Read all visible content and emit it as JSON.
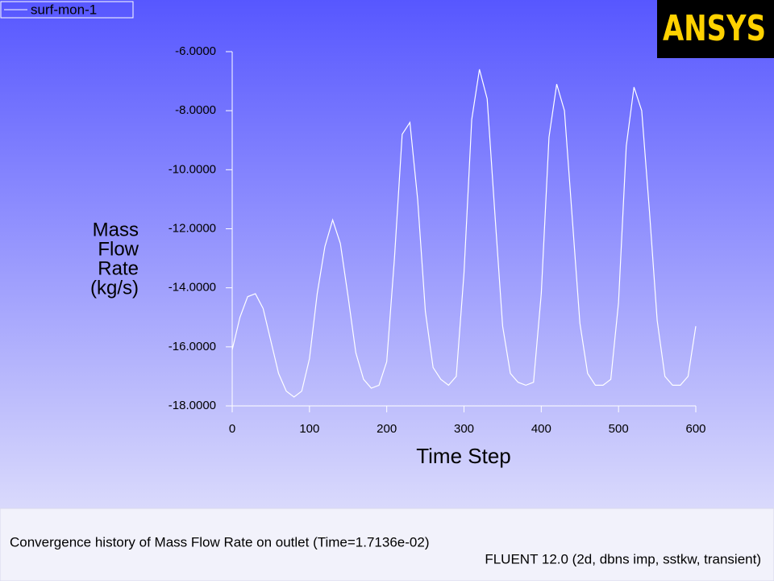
{
  "chart_data": {
    "type": "line",
    "logo": "ANSYS",
    "xlabel": "Time Step",
    "ylabel": [
      "Mass",
      "Flow",
      "Rate",
      "(kg/s)"
    ],
    "caption": "Convergence history of Mass Flow Rate on outlet  (Time=1.7136e-02)",
    "solver_info": "FLUENT 12.0 (2d, dbns imp, sstkw, transient)",
    "x": [
      0,
      10,
      20,
      30,
      40,
      50,
      60,
      70,
      80,
      90,
      100,
      110,
      120,
      130,
      140,
      150,
      160,
      170,
      180,
      190,
      200,
      210,
      220,
      230,
      240,
      250,
      260,
      270,
      280,
      290,
      300,
      310,
      320,
      330,
      340,
      350,
      360,
      370,
      380,
      390,
      400,
      410,
      420,
      430,
      440,
      450,
      460,
      470,
      480,
      490,
      500,
      510,
      520,
      530,
      540,
      550,
      560,
      570,
      580,
      590,
      600
    ],
    "series": [
      {
        "name": "surf-mon-1",
        "color": "#ffffff",
        "values": [
          -16.1,
          -15.0,
          -14.3,
          -14.2,
          -14.7,
          -15.8,
          -16.9,
          -17.5,
          -17.7,
          -17.5,
          -16.4,
          -14.2,
          -12.6,
          -11.7,
          -12.5,
          -14.3,
          -16.2,
          -17.1,
          -17.4,
          -17.3,
          -16.5,
          -13.0,
          -8.8,
          -8.4,
          -11.0,
          -14.8,
          -16.7,
          -17.1,
          -17.3,
          -17.0,
          -13.5,
          -8.3,
          -6.6,
          -7.6,
          -11.5,
          -15.3,
          -16.9,
          -17.2,
          -17.3,
          -17.2,
          -14.2,
          -8.9,
          -7.1,
          -8.0,
          -11.6,
          -15.2,
          -16.9,
          -17.3,
          -17.3,
          -17.1,
          -14.5,
          -9.2,
          -7.2,
          -8.0,
          -11.4,
          -15.1,
          -17.0,
          -17.3,
          -17.3,
          -17.0,
          -15.3
        ]
      }
    ],
    "xlim": [
      0,
      600
    ],
    "xticks": [
      0,
      100,
      200,
      300,
      400,
      500,
      600
    ],
    "ylim": [
      -18,
      -6
    ],
    "yticks": [
      {
        "value": -18,
        "label": "-18.0000"
      },
      {
        "value": -16,
        "label": "-16.0000"
      },
      {
        "value": -14,
        "label": "-14.0000"
      },
      {
        "value": -12,
        "label": "-12.0000"
      },
      {
        "value": -10,
        "label": "-10.0000"
      },
      {
        "value": -8,
        "label": "-8.0000"
      },
      {
        "value": -6,
        "label": "-6.0000"
      }
    ],
    "axis_color": "#ffffff",
    "background": [
      "#5757ff",
      "#ececfb"
    ]
  }
}
